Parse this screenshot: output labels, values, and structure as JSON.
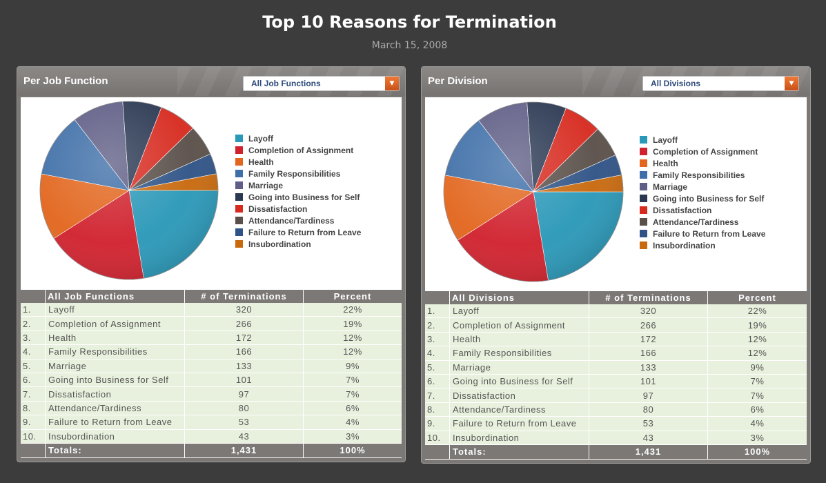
{
  "page": {
    "title": "Top 10 Reasons for Termination",
    "date": "March 15, 2008"
  },
  "panels": [
    {
      "title": "Per Job Function",
      "filter": {
        "selected": "All Job Functions"
      },
      "table": {
        "headers": [
          "All Job Functions",
          "# of Terminations",
          "Percent"
        ],
        "rows": [
          [
            "1.",
            "Layoff",
            "320",
            "22%"
          ],
          [
            "2.",
            "Completion of Assignment",
            "266",
            "19%"
          ],
          [
            "3.",
            "Health",
            "172",
            "12%"
          ],
          [
            "4.",
            "Family Responsibilities",
            "166",
            "12%"
          ],
          [
            "5.",
            "Marriage",
            "133",
            "9%"
          ],
          [
            "6.",
            "Going into Business for Self",
            "101",
            "7%"
          ],
          [
            "7.",
            "Dissatisfaction",
            "97",
            "7%"
          ],
          [
            "8.",
            "Attendance/Tardiness",
            "80",
            "6%"
          ],
          [
            "9.",
            "Failure to Return from Leave",
            "53",
            "4%"
          ],
          [
            "10.",
            "Insubordination",
            "43",
            "3%"
          ]
        ],
        "totals": [
          "Totals:",
          "1,431",
          "100%"
        ]
      }
    },
    {
      "title": "Per Division",
      "filter": {
        "selected": "All Divisions"
      },
      "table": {
        "headers": [
          "All Divisions",
          "# of Terminations",
          "Percent"
        ],
        "rows": [
          [
            "1.",
            "Layoff",
            "320",
            "22%"
          ],
          [
            "2.",
            "Completion of Assignment",
            "266",
            "19%"
          ],
          [
            "3.",
            "Health",
            "172",
            "12%"
          ],
          [
            "4.",
            "Family Responsibilities",
            "166",
            "12%"
          ],
          [
            "5.",
            "Marriage",
            "133",
            "9%"
          ],
          [
            "6.",
            "Going into Business for Self",
            "101",
            "7%"
          ],
          [
            "7.",
            "Dissatisfaction",
            "97",
            "7%"
          ],
          [
            "8.",
            "Attendance/Tardiness",
            "80",
            "6%"
          ],
          [
            "9.",
            "Failure to Return from Leave",
            "53",
            "4%"
          ],
          [
            "10.",
            "Insubordination",
            "43",
            "3%"
          ]
        ],
        "totals": [
          "Totals:",
          "1,431",
          "100%"
        ]
      }
    }
  ],
  "chart_data": [
    {
      "type": "pie",
      "title": "Per Job Function",
      "categories": [
        "Layoff",
        "Completion of Assignment",
        "Health",
        "Family Responsibilities",
        "Marriage",
        "Going into Business for Self",
        "Dissatisfaction",
        "Attendance/Tardiness",
        "Failure to Return from Leave",
        "Insubordination"
      ],
      "values": [
        320,
        266,
        172,
        166,
        133,
        101,
        97,
        80,
        53,
        43
      ],
      "colors": [
        "#2a98b8",
        "#d0222e",
        "#e2661e",
        "#3f6fa8",
        "#5f5e86",
        "#2a3852",
        "#d72a1f",
        "#5a4f49",
        "#2f5386",
        "#c8690e"
      ],
      "legend": "right"
    },
    {
      "type": "pie",
      "title": "Per Division",
      "categories": [
        "Layoff",
        "Completion of Assignment",
        "Health",
        "Family Responsibilities",
        "Marriage",
        "Going into Business for Self",
        "Dissatisfaction",
        "Attendance/Tardiness",
        "Failure to Return from Leave",
        "Insubordination"
      ],
      "values": [
        320,
        266,
        172,
        166,
        133,
        101,
        97,
        80,
        53,
        43
      ],
      "colors": [
        "#2a98b8",
        "#d0222e",
        "#e2661e",
        "#3f6fa8",
        "#5f5e86",
        "#2a3852",
        "#d72a1f",
        "#5a4f49",
        "#2f5386",
        "#c8690e"
      ],
      "legend": "right"
    }
  ]
}
